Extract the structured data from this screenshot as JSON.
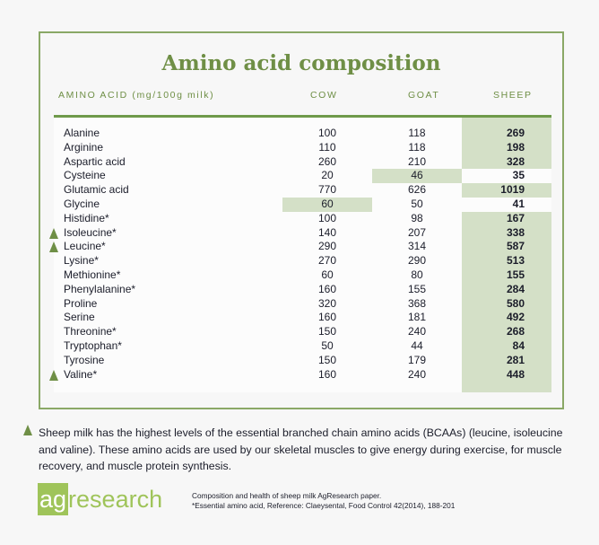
{
  "title": "Amino acid composition",
  "headers": {
    "acid": "AMINO ACID (mg/100g milk)",
    "cow": "COW",
    "goat": "GOAT",
    "sheep": "SHEEP"
  },
  "rows": [
    {
      "name": "Alanine",
      "cow": "100",
      "goat": "118",
      "sheep": "269",
      "hl": "sheep"
    },
    {
      "name": "Arginine",
      "cow": "110",
      "goat": "118",
      "sheep": "198",
      "hl": "sheep"
    },
    {
      "name": "Aspartic acid",
      "cow": "260",
      "goat": "210",
      "sheep": "328",
      "hl": "sheep"
    },
    {
      "name": "Cysteine",
      "cow": "20",
      "goat": "46",
      "sheep": "35",
      "hl": "goat"
    },
    {
      "name": "Glutamic acid",
      "cow": "770",
      "goat": "626",
      "sheep": "1019",
      "hl": "sheep"
    },
    {
      "name": "Glycine",
      "cow": "60",
      "goat": "50",
      "sheep": "41",
      "hl": "cow"
    },
    {
      "name": "Histidine*",
      "cow": "100",
      "goat": "98",
      "sheep": "167",
      "hl": "sheep"
    },
    {
      "name": "Isoleucine*",
      "cow": "140",
      "goat": "207",
      "sheep": "338",
      "hl": "sheep",
      "bcaa": true
    },
    {
      "name": "Leucine*",
      "cow": "290",
      "goat": "314",
      "sheep": "587",
      "hl": "sheep",
      "bcaa": true
    },
    {
      "name": "Lysine*",
      "cow": "270",
      "goat": "290",
      "sheep": "513",
      "hl": "sheep"
    },
    {
      "name": "Methionine*",
      "cow": "60",
      "goat": "80",
      "sheep": "155",
      "hl": "sheep"
    },
    {
      "name": "Phenylalanine*",
      "cow": "160",
      "goat": "155",
      "sheep": "284",
      "hl": "sheep"
    },
    {
      "name": "Proline",
      "cow": "320",
      "goat": "368",
      "sheep": "580",
      "hl": "sheep"
    },
    {
      "name": "Serine",
      "cow": "160",
      "goat": "181",
      "sheep": "492",
      "hl": "sheep"
    },
    {
      "name": "Threonine*",
      "cow": "150",
      "goat": "240",
      "sheep": "268",
      "hl": "sheep"
    },
    {
      "name": "Tryptophan*",
      "cow": "50",
      "goat": "44",
      "sheep": "84",
      "hl": "sheep"
    },
    {
      "name": "Tyrosine",
      "cow": "150",
      "goat": "179",
      "sheep": "281",
      "hl": "sheep"
    },
    {
      "name": "Valine*",
      "cow": "160",
      "goat": "240",
      "sheep": "448",
      "hl": "sheep",
      "bcaa": true
    }
  ],
  "note": "Sheep milk has the highest levels of the essential branched chain amino acids (BCAAs) (leucine, isoleucine and valine). These amino acids are used by our skeletal muscles to give energy during exercise, for muscle recovery, and muscle protein synthesis.",
  "logo": {
    "ag": "ag",
    "research": "research"
  },
  "references": [
    "Composition and health of sheep milk AgResearch paper.",
    "*Essential amino acid, Reference: Claeysental, Food Control 42(2014), 188-201"
  ]
}
